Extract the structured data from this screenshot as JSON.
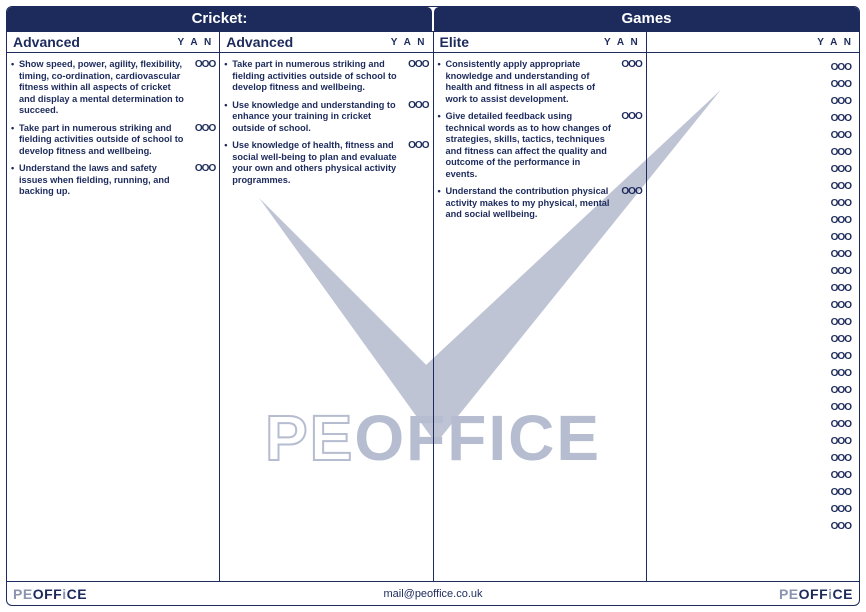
{
  "colors": {
    "primary": "#1d2b5c",
    "muted": "#8a93b0",
    "watermark": "#b6bdd0",
    "background": "#ffffff"
  },
  "header": {
    "left_title": "Cricket:",
    "right_title": "Games"
  },
  "yan_label": "Y A N",
  "mark_glyph": "OOO",
  "columns": [
    {
      "sub": "Advanced",
      "items": [
        "Show speed, power, agility, flexibility, timing, co-ordination, cardiovascular fitness within all aspects of cricket and display a mental determination to succeed.",
        "Take part in numerous striking and fielding activities outside of school to develop fitness and wellbeing.",
        "Understand the laws and safety issues when fielding, running, and backing up."
      ]
    },
    {
      "sub": "Advanced",
      "items": [
        "Take part in numerous striking and fielding activities outside of school to develop fitness and wellbeing.",
        "Use knowledge and understanding to enhance your training in cricket outside of school.",
        "Use knowledge of health, fitness and social well-being to plan and evaluate your own and others physical activity programmes."
      ]
    },
    {
      "sub": "Elite",
      "items": [
        "Consistently apply appropriate knowledge and understanding of health and fitness in all aspects of work to assist development.",
        "Give detailed feedback using technical words as to how changes of strategies, skills, tactics, techniques and fitness can affect the quality and outcome of the performance in events.",
        "Understand the contribution physical activity makes to my physical, mental and social wellbeing."
      ]
    },
    {
      "sub": "",
      "empty_rows": 28
    }
  ],
  "footer": {
    "email": "mail@peoffice.co.uk",
    "logo_parts": {
      "pe": "PE",
      "off": "OFF",
      "i": "i",
      "ce": "CE"
    }
  },
  "watermark_text": {
    "pe": "PE",
    "rest": "OFFICE"
  }
}
